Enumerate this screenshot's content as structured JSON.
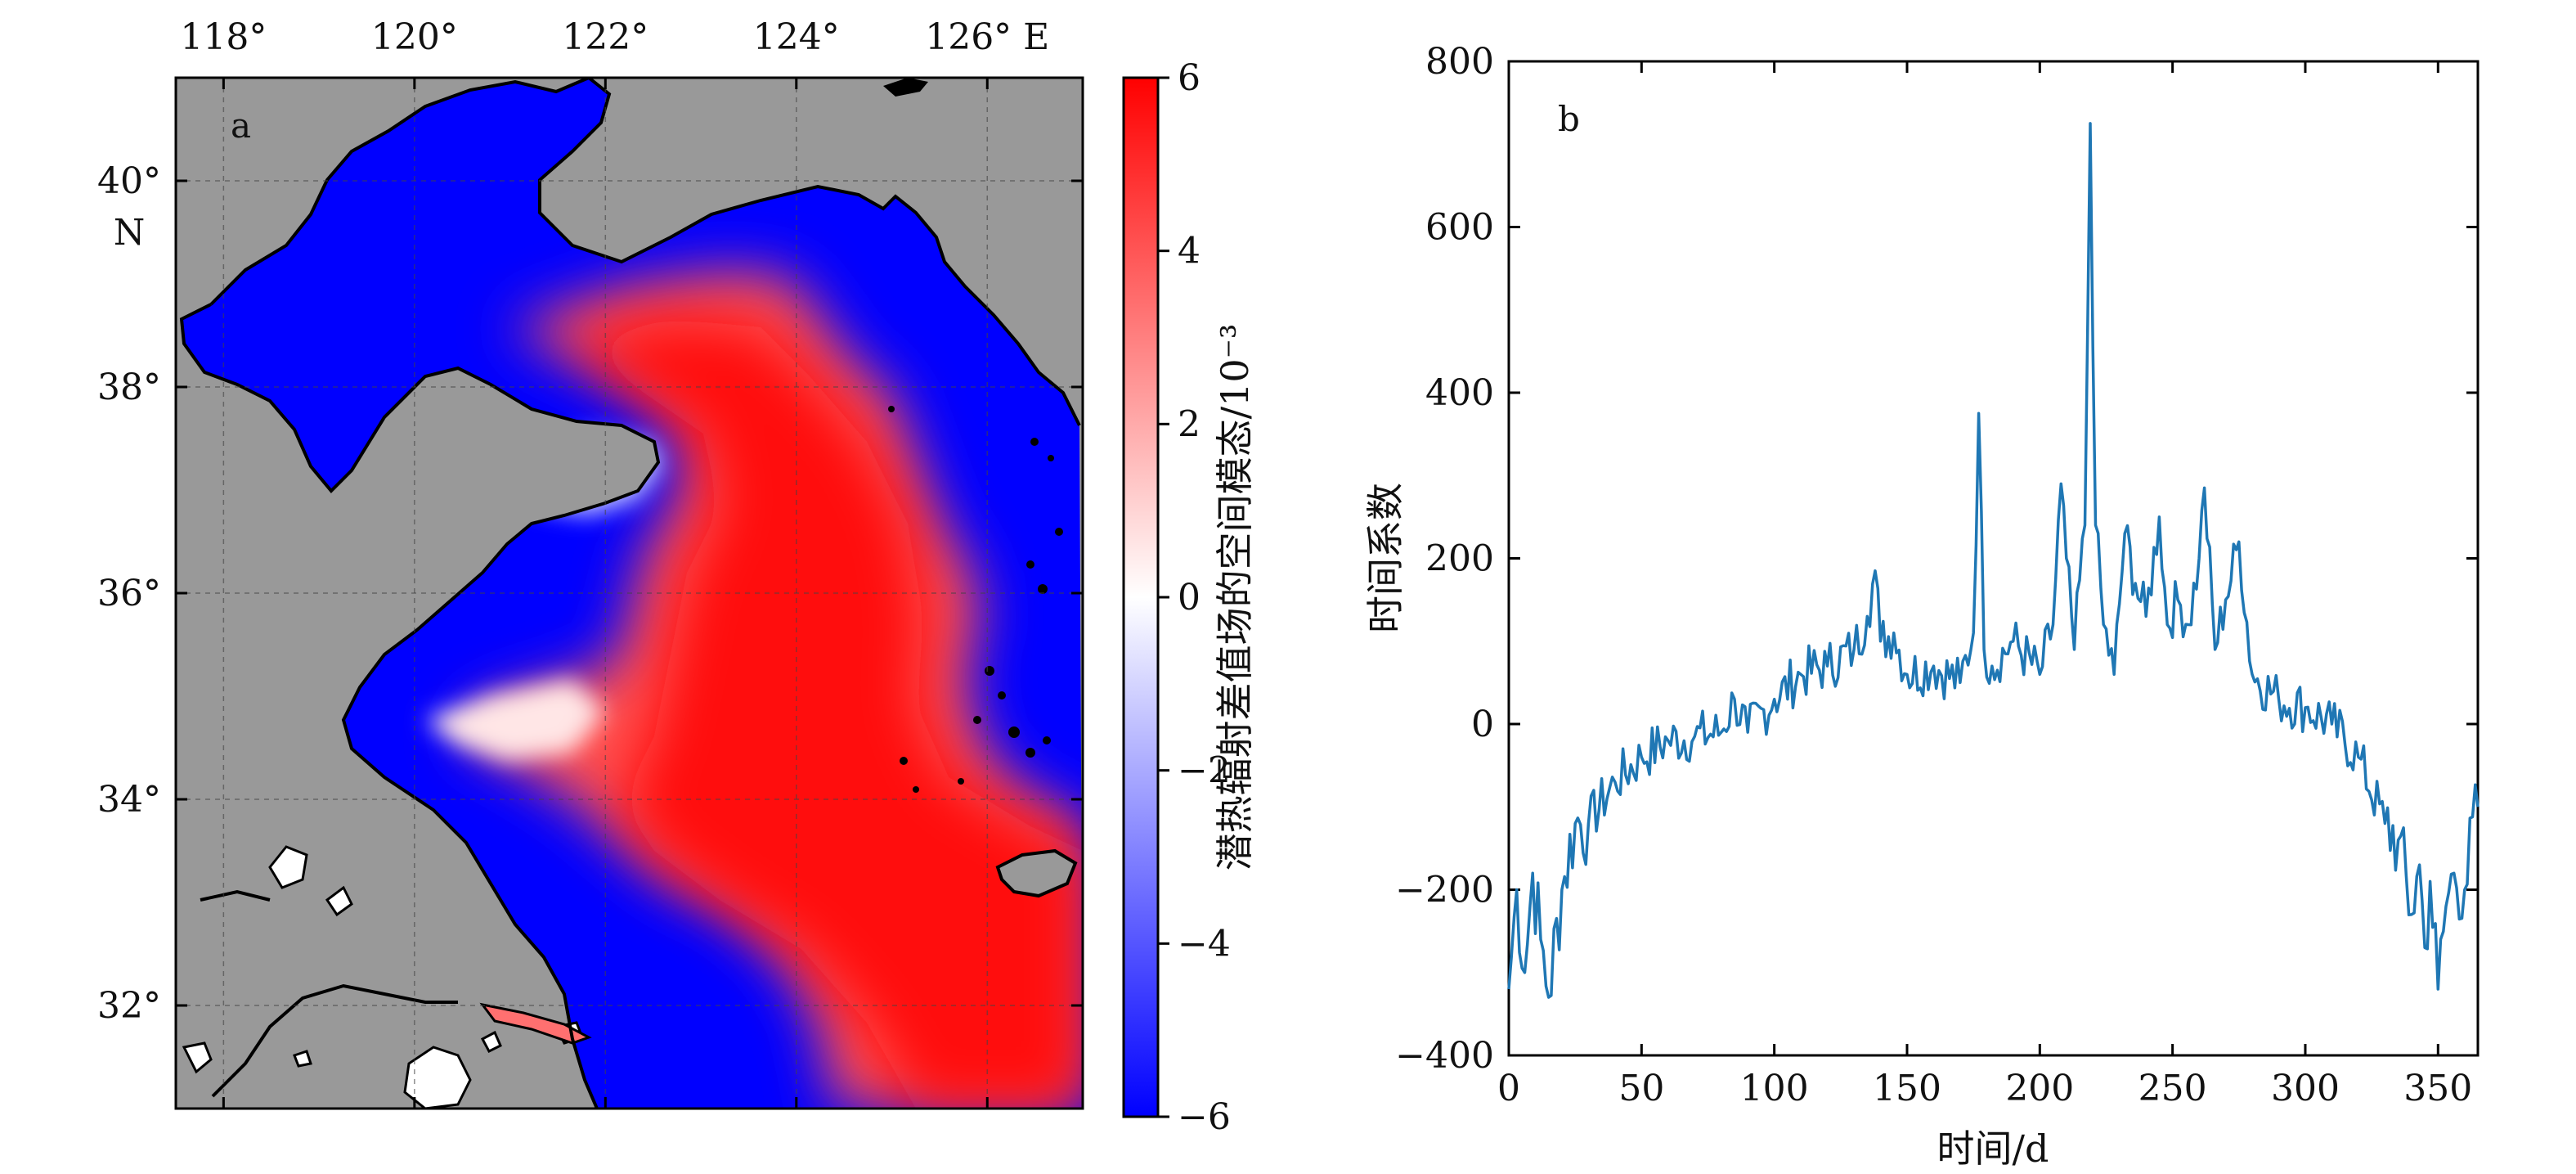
{
  "chart_data": [
    {
      "type": "heatmap",
      "panel": "a",
      "x_ticks": [
        "118°",
        "120°",
        "122°",
        "124°",
        "126° E"
      ],
      "x_tick_values": [
        118,
        120,
        122,
        124,
        126
      ],
      "y_ticks": [
        "40°",
        "38°",
        "36°",
        "34°",
        "32°"
      ],
      "y_tick_values": [
        40,
        38,
        36,
        34,
        32
      ],
      "y_unit_label": "N",
      "xlim": [
        117.5,
        127.0
      ],
      "ylim": [
        31.0,
        41.0
      ],
      "grid": true,
      "colorbar": {
        "label": "潜热辐射差值场的空间模态/10⁻³",
        "ticks": [
          "6",
          "4",
          "2",
          "0",
          "−2",
          "−4",
          "−6"
        ],
        "tick_values": [
          6,
          4,
          2,
          0,
          -2,
          -4,
          -6
        ],
        "range": [
          -6,
          6
        ],
        "colors": {
          "min": "#0000ff",
          "mid": "#ffffff",
          "max": "#ff0000"
        }
      },
      "colors": {
        "land": "#999999",
        "inland_water": "#ffffff",
        "coast": "#000000"
      }
    },
    {
      "type": "line",
      "panel": "b",
      "xlabel": "时间/d",
      "ylabel": "时间系数",
      "xlim": [
        0,
        365
      ],
      "ylim": [
        -400,
        800
      ],
      "x_ticks": [
        0,
        50,
        100,
        150,
        200,
        250,
        300,
        350
      ],
      "y_ticks": [
        "800",
        "600",
        "400",
        "200",
        "0",
        "−200",
        "−400"
      ],
      "y_tick_values": [
        800,
        600,
        400,
        200,
        0,
        -200,
        -400
      ],
      "grid": false,
      "series": [
        {
          "color": "#1f77b4",
          "x": [
            0,
            3,
            6,
            9,
            12,
            15,
            20,
            25,
            30,
            40,
            50,
            60,
            70,
            80,
            85,
            90,
            100,
            110,
            120,
            130,
            135,
            138,
            140,
            145,
            150,
            160,
            170,
            175,
            177,
            179,
            182,
            190,
            200,
            205,
            208,
            210,
            213,
            217,
            219,
            221,
            224,
            228,
            232,
            236,
            240,
            245,
            248,
            252,
            256,
            260,
            262,
            266,
            270,
            275,
            280,
            290,
            300,
            310,
            320,
            330,
            335,
            340,
            343,
            345,
            347,
            350,
            353,
            356,
            360,
            365
          ],
          "y": [
            -320,
            -200,
            -300,
            -180,
            -260,
            -330,
            -200,
            -120,
            -120,
            -70,
            -40,
            -20,
            -15,
            -10,
            30,
            -10,
            30,
            60,
            70,
            90,
            130,
            185,
            100,
            110,
            60,
            70,
            50,
            110,
            375,
            90,
            70,
            100,
            60,
            120,
            290,
            200,
            90,
            240,
            725,
            240,
            120,
            60,
            230,
            170,
            130,
            250,
            120,
            150,
            120,
            200,
            285,
            90,
            150,
            220,
            60,
            30,
            20,
            0,
            -40,
            -120,
            -140,
            -230,
            -170,
            -270,
            -190,
            -320,
            -220,
            -180,
            -200,
            -100
          ]
        }
      ]
    }
  ]
}
